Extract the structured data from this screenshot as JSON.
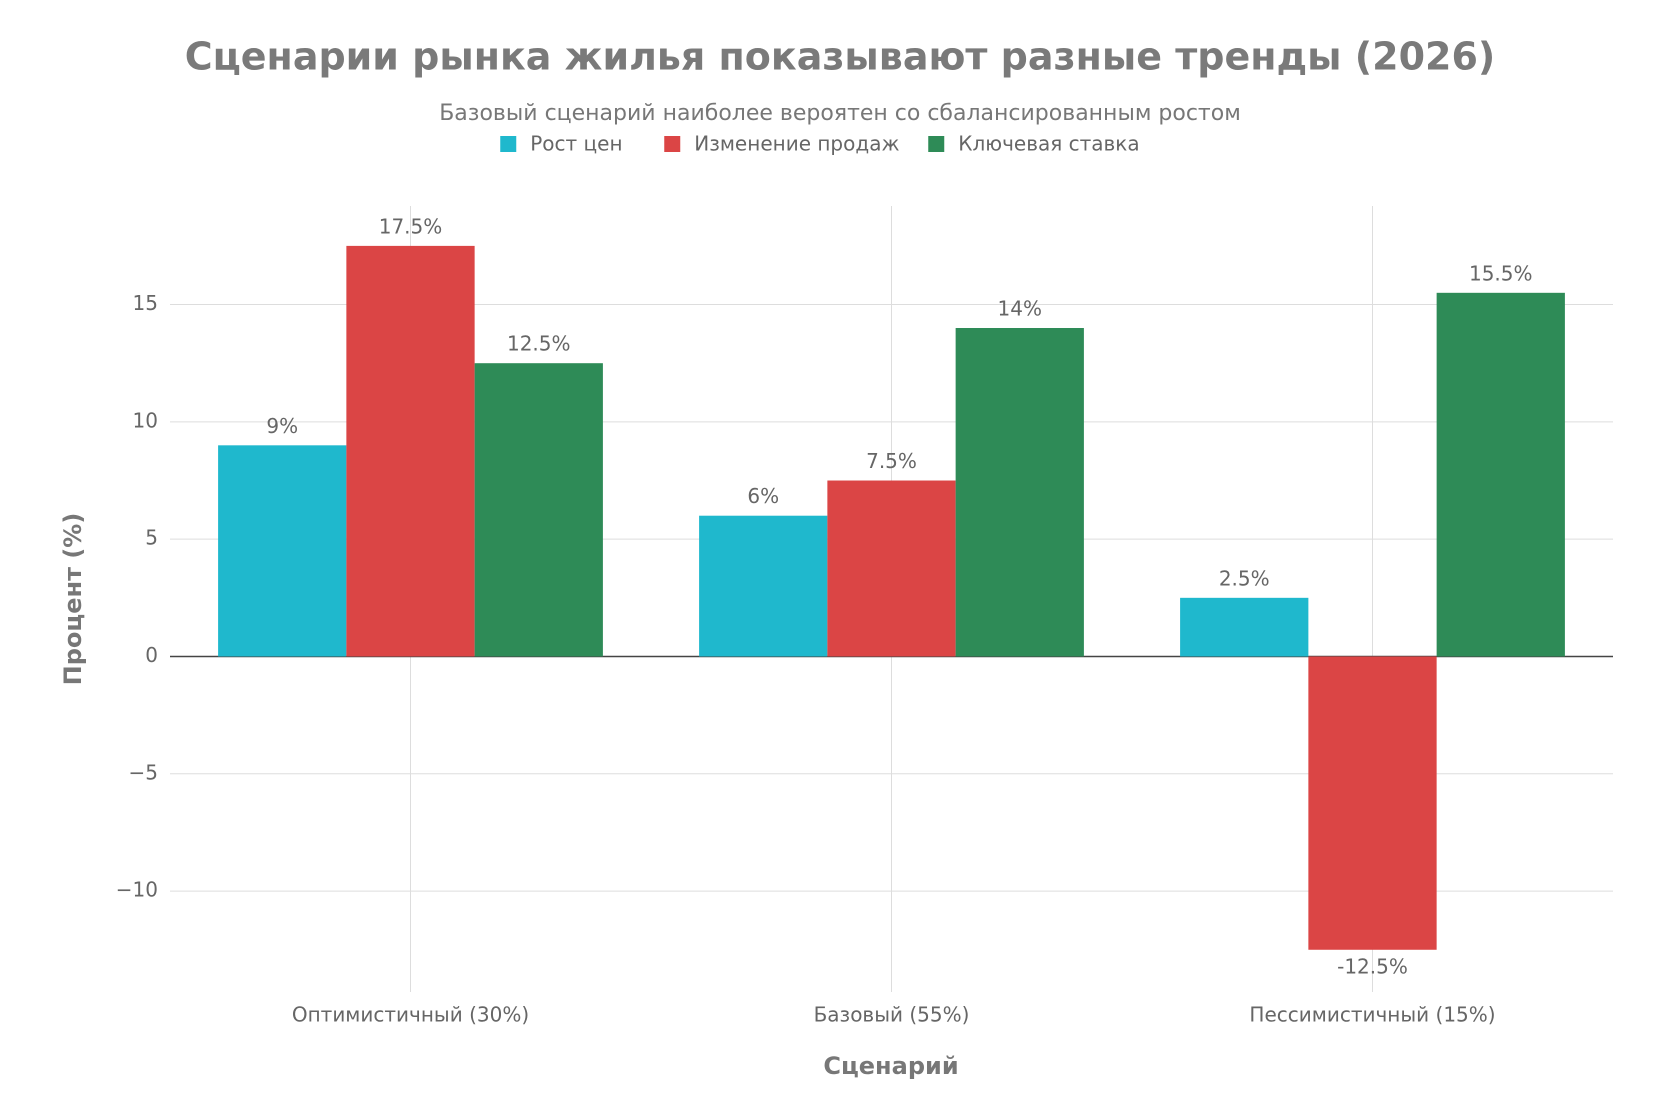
{
  "chart_data": {
    "type": "bar",
    "title": "Сценарии рынка жилья показывают разные тренды (2026)",
    "subtitle": "Базовый сценарий наиболее вероятен со сбалансированным ростом",
    "x_label": "Сценарий",
    "y_label": "Процент (%)",
    "categories": [
      "Оптимистичный (30%)",
      "Базовый (55%)",
      "Пессимистичный (15%)"
    ],
    "series": [
      {
        "name": "Рост цен",
        "color": "#1FB8CD",
        "values": [
          9,
          6,
          2.5
        ],
        "value_labels": [
          "9%",
          "6%",
          "2.5%"
        ]
      },
      {
        "name": "Изменение продаж",
        "color": "#DB4545",
        "values": [
          17.5,
          7.5,
          -12.5
        ],
        "value_labels": [
          "17.5%",
          "7.5%",
          "-12.5%"
        ]
      },
      {
        "name": "Ключевая ставка",
        "color": "#2E8B57",
        "values": [
          12.5,
          14,
          15.5
        ],
        "value_labels": [
          "12.5%",
          "14%",
          "15.5%"
        ]
      }
    ],
    "ylim": [
      -14.3,
      19.2
    ],
    "yticks": [
      {
        "value": -10,
        "label": "−10"
      },
      {
        "value": -5,
        "label": "−5"
      },
      0,
      5,
      10,
      15
    ],
    "grid": true
  }
}
